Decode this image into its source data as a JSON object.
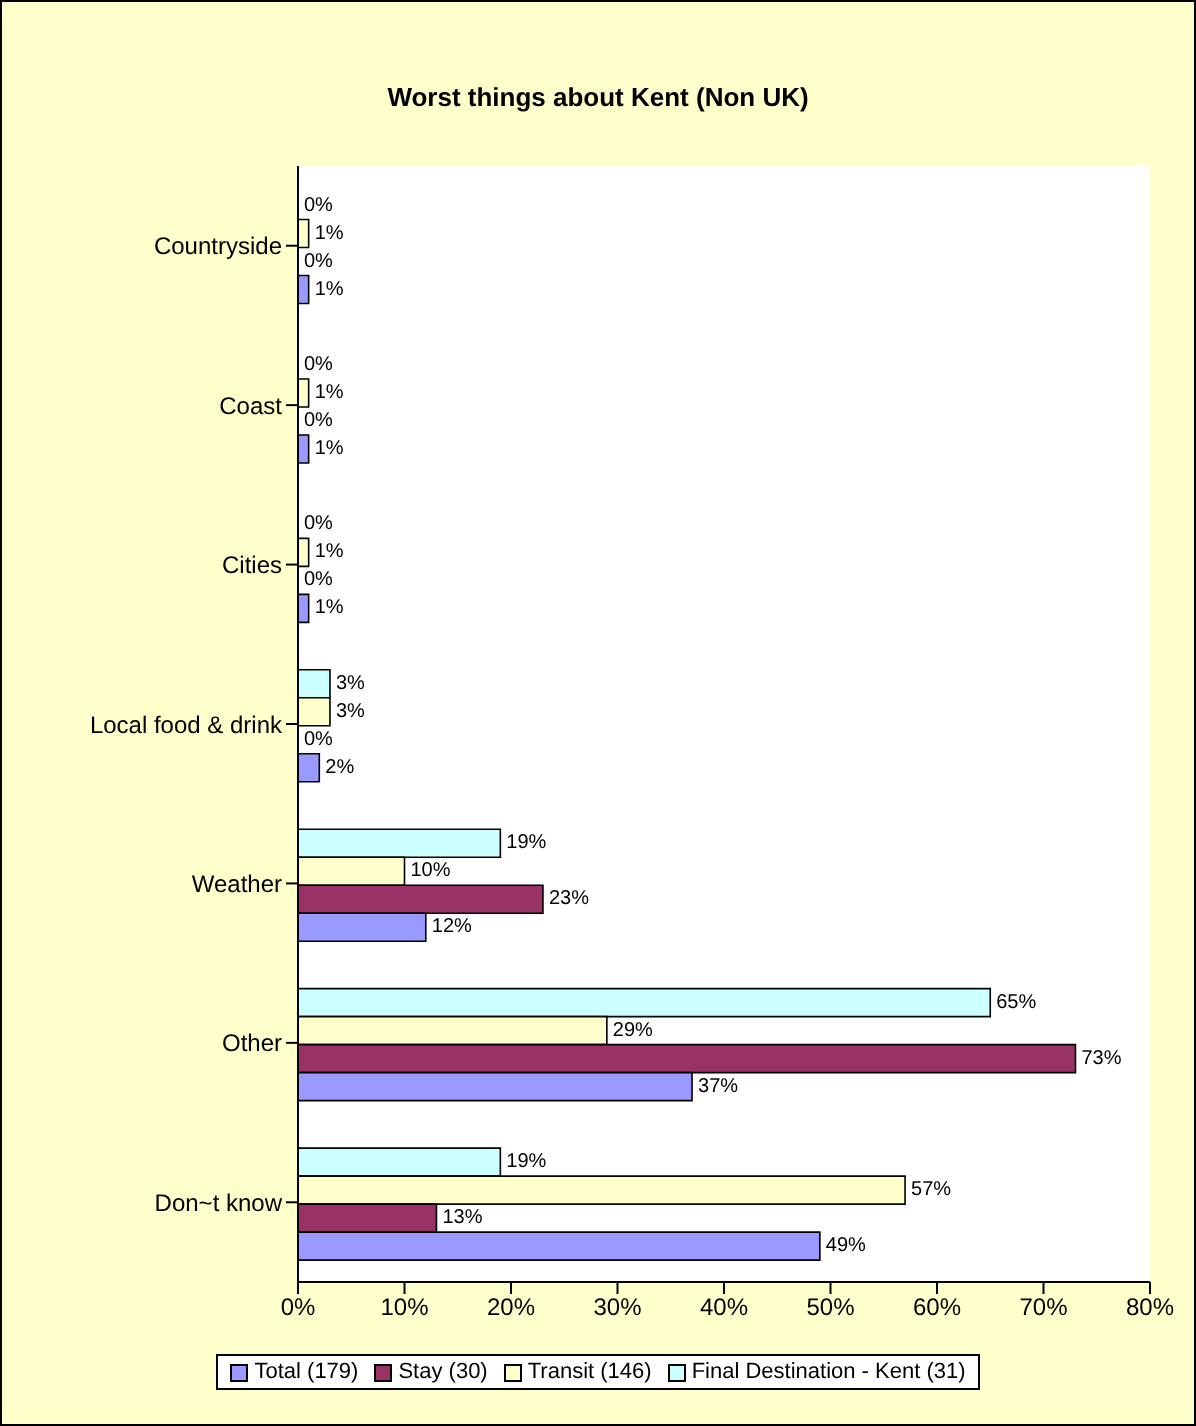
{
  "chart_data": {
    "type": "bar",
    "orientation": "horizontal",
    "title": "Worst things about Kent (Non UK)",
    "categories": [
      "Countryside",
      "Coast",
      "Cities",
      "Local food & drink",
      "Weather",
      "Other",
      "Don~t know"
    ],
    "series": [
      {
        "name": "Total (179)",
        "color": "#9999ff",
        "values": [
          1,
          1,
          1,
          2,
          12,
          37,
          49
        ],
        "value_labels": [
          "1%",
          "1%",
          "1%",
          "2%",
          "12%",
          "37%",
          "49%"
        ]
      },
      {
        "name": "Stay (30)",
        "color": "#993366",
        "values": [
          0,
          0,
          0,
          0,
          23,
          73,
          13
        ],
        "value_labels": [
          "0%",
          "0%",
          "0%",
          "0%",
          "23%",
          "73%",
          "13%"
        ]
      },
      {
        "name": "Transit (146)",
        "color": "#ffffcc",
        "values": [
          1,
          1,
          1,
          3,
          10,
          29,
          57
        ],
        "value_labels": [
          "1%",
          "1%",
          "1%",
          "3%",
          "10%",
          "29%",
          "57%"
        ]
      },
      {
        "name": "Final Destination - Kent (31)",
        "color": "#ccffff",
        "values": [
          0,
          0,
          0,
          3,
          19,
          65,
          19
        ],
        "value_labels": [
          "0%",
          "0%",
          "0%",
          "3%",
          "19%",
          "65%",
          "19%"
        ]
      }
    ],
    "xlim": [
      0,
      80
    ],
    "xticks": [
      {
        "value": 0,
        "label": "0%"
      },
      {
        "value": 10,
        "label": "10%"
      },
      {
        "value": 20,
        "label": "20%"
      },
      {
        "value": 30,
        "label": "30%"
      },
      {
        "value": 40,
        "label": "40%"
      },
      {
        "value": 50,
        "label": "50%"
      },
      {
        "value": 60,
        "label": "60%"
      },
      {
        "value": 70,
        "label": "70%"
      },
      {
        "value": 80,
        "label": "80%"
      }
    ],
    "grid": false,
    "legend": "bottom"
  }
}
